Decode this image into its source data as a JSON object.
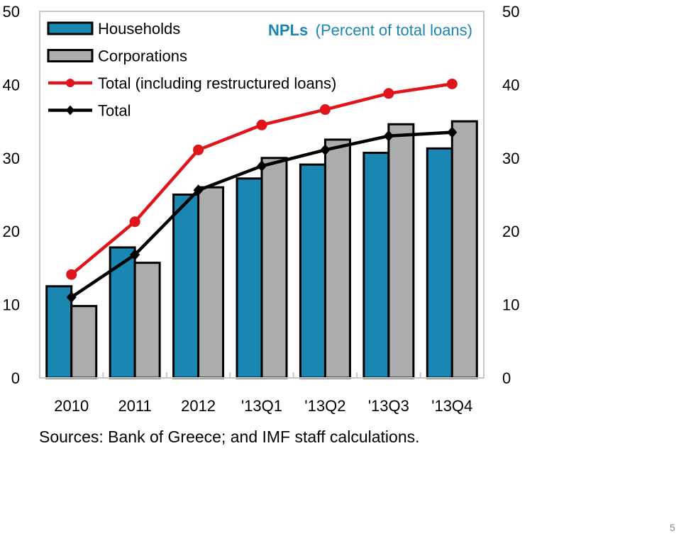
{
  "colors": {
    "households": "#1A86B2",
    "corporations": "#ADADAD",
    "total_incl_restructured": "#E0141B",
    "total": "#000000",
    "title_accent": "#1A86B2"
  },
  "chart_data": {
    "type": "bar",
    "title_bold": "NPLs",
    "title_rest": "(Percent of total loans)",
    "categories": [
      "2010",
      "2011",
      "2012",
      "'13Q1",
      "'13Q2",
      "'13Q3",
      "'13Q4"
    ],
    "ylim": [
      0,
      50
    ],
    "yticks": [
      0,
      10,
      20,
      30,
      40,
      50
    ],
    "grid": false,
    "legend_position": "top-left",
    "bar_series": [
      {
        "name": "Households",
        "values": [
          12.5,
          17.8,
          25.0,
          27.2,
          29.1,
          30.7,
          31.3
        ]
      },
      {
        "name": "Corporations",
        "values": [
          9.8,
          15.7,
          26.0,
          30.0,
          32.5,
          34.6,
          35.0
        ]
      }
    ],
    "line_series": [
      {
        "name": "Total (including restructured loans)",
        "values": [
          14.1,
          21.3,
          31.1,
          34.5,
          36.6,
          38.8,
          40.1
        ]
      },
      {
        "name": "Total",
        "values": [
          11.0,
          16.8,
          25.6,
          28.9,
          31.1,
          33.0,
          33.5
        ]
      }
    ]
  },
  "footer": {
    "source": "Sources: Bank of Greece; and IMF staff calculations.",
    "page_number": "5"
  }
}
